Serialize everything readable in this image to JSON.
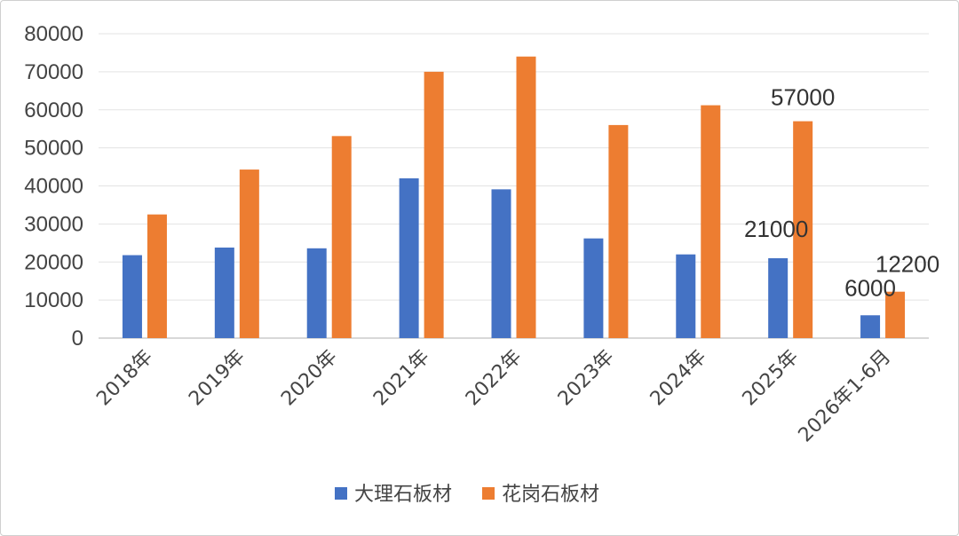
{
  "chart_data": {
    "type": "bar",
    "categories": [
      "2018年",
      "2019年",
      "2020年",
      "2021年",
      "2022年",
      "2023年",
      "2024年",
      "2025年",
      "2026年1-6月"
    ],
    "series": [
      {
        "name": "大理石板材",
        "color": "#4472C4",
        "values": [
          21800,
          23800,
          23600,
          42000,
          39100,
          26200,
          22000,
          21000,
          6000
        ]
      },
      {
        "name": "花岗石板材",
        "color": "#ED7D31",
        "values": [
          32500,
          44300,
          53100,
          70000,
          74000,
          56000,
          61200,
          57000,
          12200
        ]
      }
    ],
    "ylim": [
      0,
      80000
    ],
    "yticks": [
      0,
      10000,
      20000,
      30000,
      40000,
      50000,
      60000,
      70000,
      80000
    ],
    "grid": true,
    "legend_position": "bottom",
    "data_labels": [
      {
        "series": 0,
        "index": 7,
        "text": "21000"
      },
      {
        "series": 1,
        "index": 7,
        "text": "57000"
      },
      {
        "series": 0,
        "index": 8,
        "text": "6000"
      },
      {
        "series": 1,
        "index": 8,
        "text": "12200"
      }
    ]
  }
}
